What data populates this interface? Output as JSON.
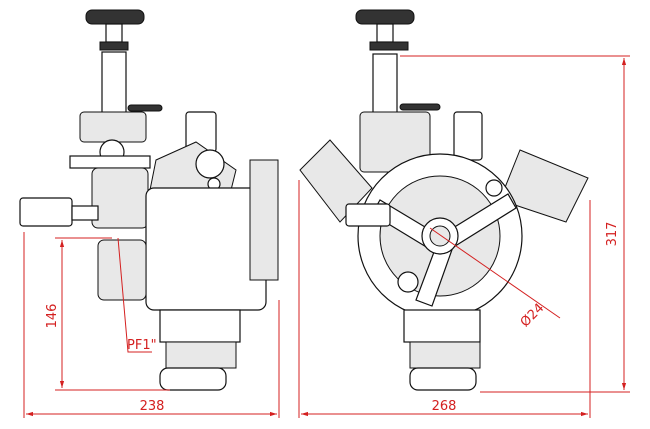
{
  "left_view": {
    "width": "238",
    "height": "146",
    "port": "PF1\""
  },
  "right_view": {
    "width": "268",
    "height": "317",
    "diameter": "Ø24"
  }
}
